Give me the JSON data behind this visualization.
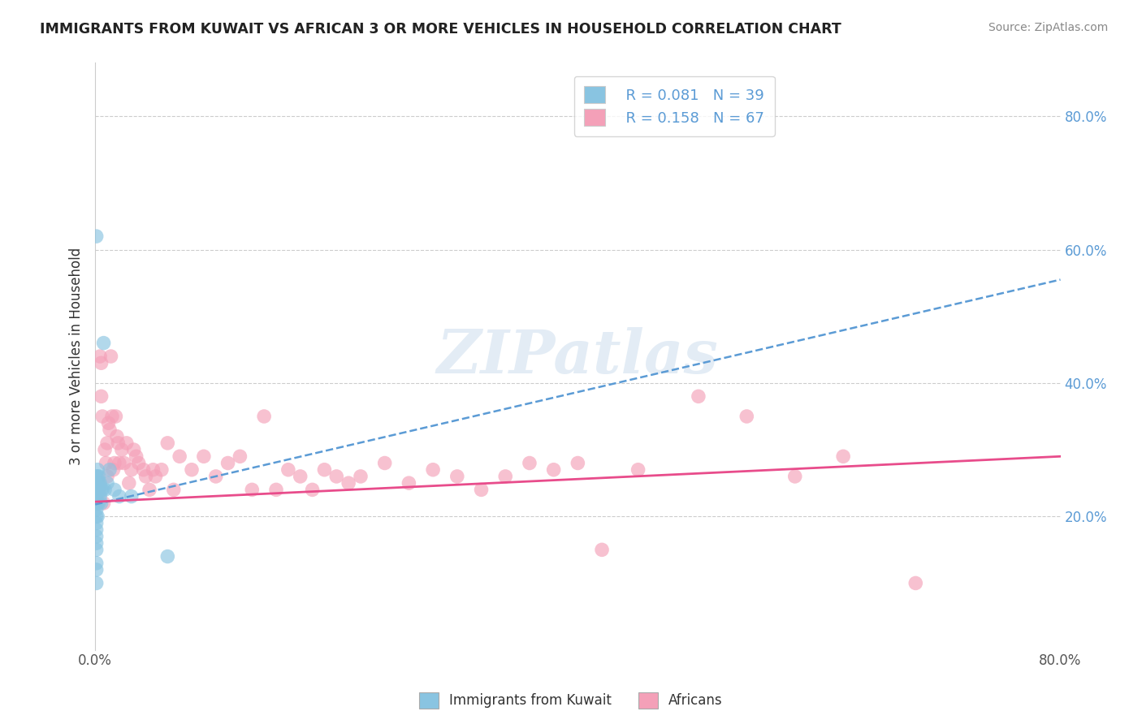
{
  "title": "IMMIGRANTS FROM KUWAIT VS AFRICAN 3 OR MORE VEHICLES IN HOUSEHOLD CORRELATION CHART",
  "source": "Source: ZipAtlas.com",
  "ylabel": "3 or more Vehicles in Household",
  "watermark": "ZIPatlas",
  "blue_color": "#89c4e1",
  "pink_color": "#f4a0b8",
  "blue_line_color": "#5b9bd5",
  "pink_line_color": "#e84c8b",
  "grid_color": "#cccccc",
  "xlim": [
    0.0,
    0.8
  ],
  "ylim": [
    0.0,
    0.88
  ],
  "kuwait_x": [
    0.001,
    0.001,
    0.001,
    0.001,
    0.001,
    0.001,
    0.001,
    0.001,
    0.001,
    0.001,
    0.001,
    0.001,
    0.001,
    0.001,
    0.001,
    0.001,
    0.002,
    0.002,
    0.002,
    0.002,
    0.002,
    0.002,
    0.003,
    0.003,
    0.003,
    0.003,
    0.004,
    0.004,
    0.005,
    0.005,
    0.006,
    0.007,
    0.008,
    0.01,
    0.012,
    0.016,
    0.02,
    0.03,
    0.06
  ],
  "kuwait_y": [
    0.62,
    0.26,
    0.25,
    0.24,
    0.23,
    0.22,
    0.21,
    0.2,
    0.19,
    0.18,
    0.17,
    0.16,
    0.15,
    0.13,
    0.12,
    0.1,
    0.27,
    0.26,
    0.25,
    0.24,
    0.22,
    0.2,
    0.26,
    0.25,
    0.24,
    0.22,
    0.25,
    0.23,
    0.24,
    0.22,
    0.24,
    0.46,
    0.24,
    0.25,
    0.27,
    0.24,
    0.23,
    0.23,
    0.14
  ],
  "african_x": [
    0.004,
    0.005,
    0.005,
    0.006,
    0.007,
    0.008,
    0.009,
    0.01,
    0.01,
    0.011,
    0.012,
    0.013,
    0.014,
    0.015,
    0.016,
    0.017,
    0.018,
    0.019,
    0.02,
    0.022,
    0.024,
    0.026,
    0.028,
    0.03,
    0.032,
    0.034,
    0.036,
    0.04,
    0.042,
    0.045,
    0.048,
    0.05,
    0.055,
    0.06,
    0.065,
    0.07,
    0.08,
    0.09,
    0.1,
    0.11,
    0.12,
    0.13,
    0.14,
    0.15,
    0.16,
    0.17,
    0.18,
    0.19,
    0.2,
    0.21,
    0.22,
    0.24,
    0.26,
    0.28,
    0.3,
    0.32,
    0.34,
    0.36,
    0.38,
    0.4,
    0.42,
    0.45,
    0.5,
    0.54,
    0.58,
    0.62,
    0.68
  ],
  "african_y": [
    0.44,
    0.43,
    0.38,
    0.35,
    0.22,
    0.3,
    0.28,
    0.31,
    0.26,
    0.34,
    0.33,
    0.44,
    0.35,
    0.27,
    0.28,
    0.35,
    0.32,
    0.31,
    0.28,
    0.3,
    0.28,
    0.31,
    0.25,
    0.27,
    0.3,
    0.29,
    0.28,
    0.27,
    0.26,
    0.24,
    0.27,
    0.26,
    0.27,
    0.31,
    0.24,
    0.29,
    0.27,
    0.29,
    0.26,
    0.28,
    0.29,
    0.24,
    0.35,
    0.24,
    0.27,
    0.26,
    0.24,
    0.27,
    0.26,
    0.25,
    0.26,
    0.28,
    0.25,
    0.27,
    0.26,
    0.24,
    0.26,
    0.28,
    0.27,
    0.28,
    0.15,
    0.27,
    0.38,
    0.35,
    0.26,
    0.29,
    0.1
  ],
  "blue_trend_x0": 0.0,
  "blue_trend_x1": 0.8,
  "blue_trend_y0": 0.218,
  "blue_trend_y1": 0.555,
  "pink_trend_x0": 0.0,
  "pink_trend_x1": 0.8,
  "pink_trend_y0": 0.222,
  "pink_trend_y1": 0.29
}
